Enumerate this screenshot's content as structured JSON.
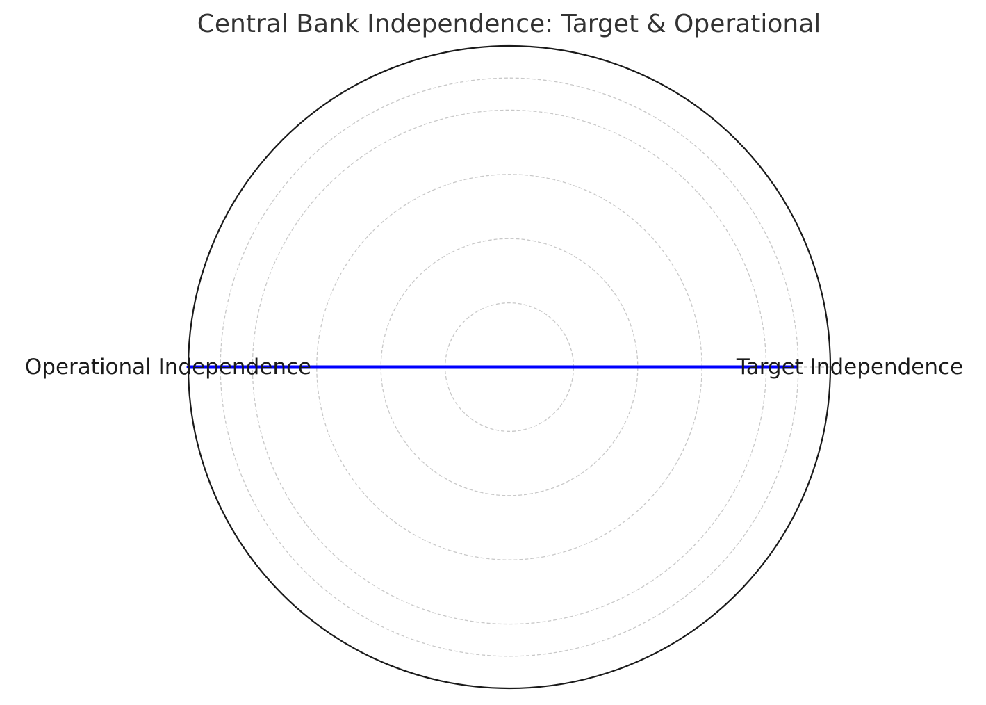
{
  "chart_data": {
    "type": "radar",
    "title": "Central Bank Independence: Target & Operational",
    "categories": [
      "Target Independence",
      "Operational Independence"
    ],
    "series": [
      {
        "values": [
          0.9,
          1.0
        ],
        "color": "#0000ff"
      }
    ],
    "rlim": [
      0,
      1.0
    ],
    "rticks": [
      0.2,
      0.4,
      0.6,
      0.8,
      0.9,
      1.0
    ],
    "grid": true,
    "tick_labels_visible": false,
    "colors": {
      "series": "#0000ff",
      "grid": "#c8c8c8",
      "frame": "#1a1a1a",
      "title": "#333333",
      "label": "#1a1a1a"
    }
  }
}
